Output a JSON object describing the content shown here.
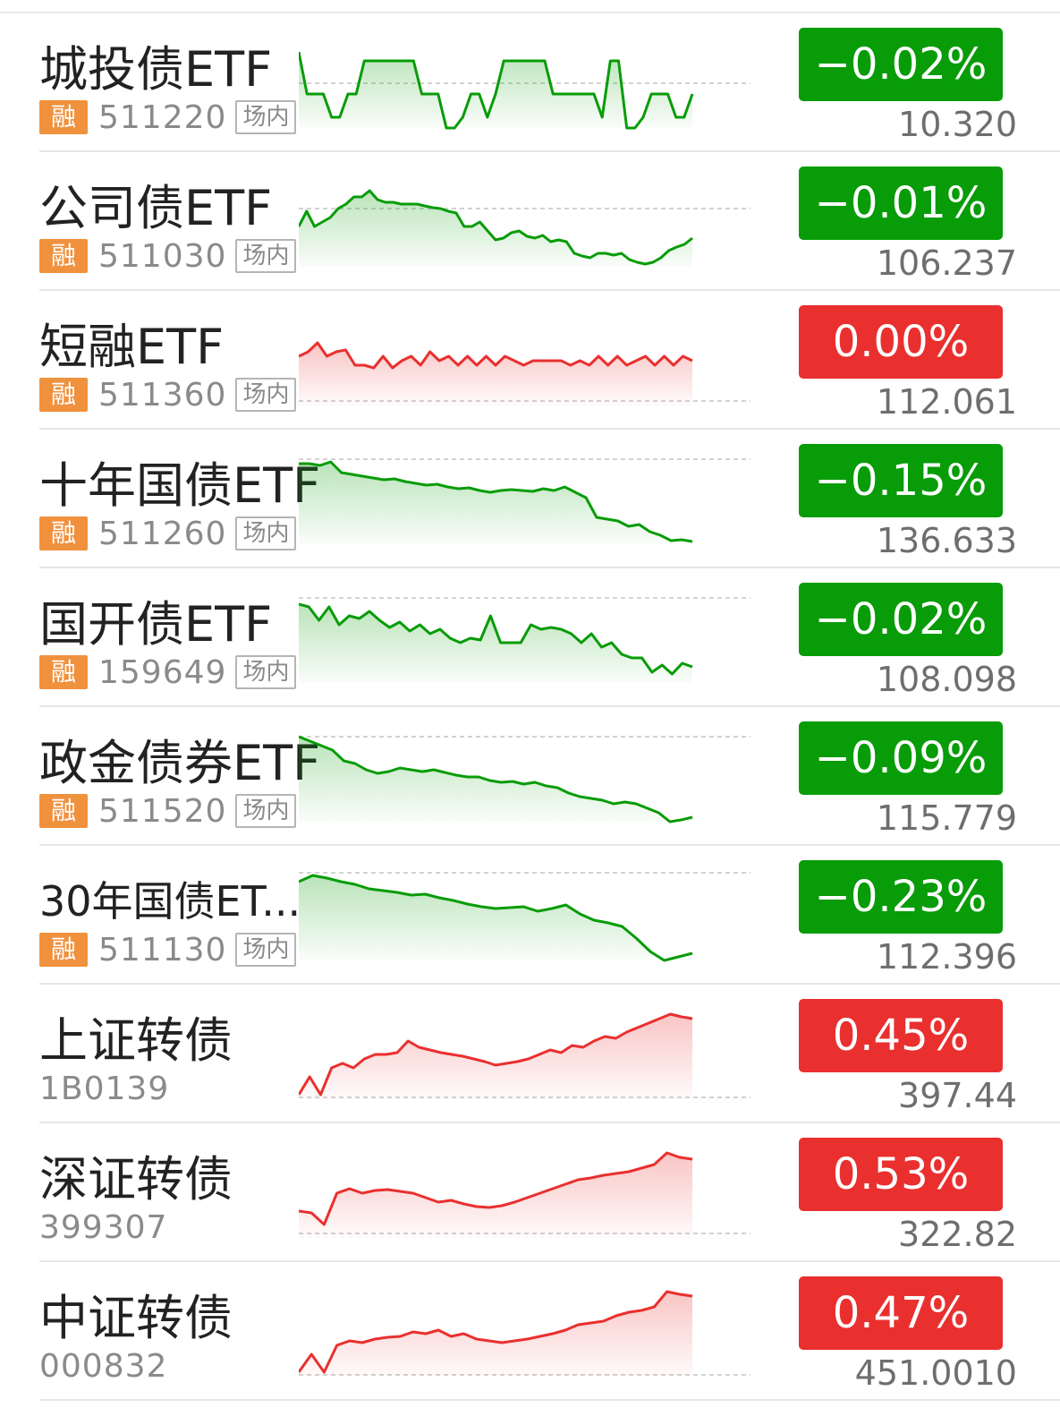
{
  "colors": {
    "down": "#089c08",
    "up": "#e9302f",
    "tag": "#f0913e"
  },
  "items": [
    {
      "name": "城投债ETF",
      "tag": "融",
      "code": "511220",
      "market": "场内",
      "change": "−0.02%",
      "price": "10.320",
      "dir": "down",
      "spark": [
        0.15,
        0.62,
        0.62,
        0.62,
        0.88,
        0.88,
        0.62,
        0.62,
        0.25,
        0.25,
        0.25,
        0.25,
        0.25,
        0.25,
        0.25,
        0.62,
        0.62,
        0.62,
        1.0,
        1.0,
        0.88,
        0.62,
        0.62,
        0.88,
        0.62,
        0.25,
        0.25,
        0.25,
        0.25,
        0.25,
        0.25,
        0.62,
        0.62,
        0.62,
        0.62,
        0.62,
        0.62,
        0.88,
        0.25,
        0.25,
        1.0,
        1.0,
        0.88,
        0.62,
        0.62,
        0.62,
        0.88,
        0.88,
        0.62
      ],
      "ref": 0.5
    },
    {
      "name": "公司债ETF",
      "tag": "融",
      "code": "511030",
      "market": "场内",
      "change": "−0.01%",
      "price": "106.237",
      "dir": "down",
      "spark": [
        0.55,
        0.38,
        0.55,
        0.5,
        0.45,
        0.35,
        0.3,
        0.22,
        0.22,
        0.15,
        0.25,
        0.28,
        0.28,
        0.3,
        0.3,
        0.3,
        0.32,
        0.34,
        0.35,
        0.38,
        0.4,
        0.55,
        0.55,
        0.5,
        0.6,
        0.7,
        0.68,
        0.62,
        0.6,
        0.66,
        0.68,
        0.65,
        0.72,
        0.7,
        0.72,
        0.85,
        0.88,
        0.9,
        0.85,
        0.85,
        0.87,
        0.85,
        0.92,
        0.95,
        0.97,
        0.95,
        0.9,
        0.82,
        0.78,
        0.75,
        0.68
      ],
      "ref": 0.35
    },
    {
      "name": "短融ETF",
      "tag": "融",
      "code": "511360",
      "market": "场内",
      "change": "0.00%",
      "price": "112.061",
      "dir": "up",
      "spark": [
        0.45,
        0.4,
        0.3,
        0.45,
        0.4,
        0.38,
        0.55,
        0.55,
        0.58,
        0.45,
        0.58,
        0.5,
        0.45,
        0.55,
        0.4,
        0.5,
        0.45,
        0.55,
        0.45,
        0.55,
        0.45,
        0.55,
        0.45,
        0.5,
        0.55,
        0.5,
        0.5,
        0.5,
        0.5,
        0.55,
        0.5,
        0.55,
        0.45,
        0.55,
        0.45,
        0.55,
        0.5,
        0.45,
        0.55,
        0.45,
        0.55,
        0.45,
        0.5
      ],
      "ref": 0.95
    },
    {
      "name": "十年国债ETF",
      "tag": "融",
      "code": "511260",
      "market": "场内",
      "change": "−0.15%",
      "price": "136.633",
      "dir": "down",
      "spark": [
        0.1,
        0.1,
        0.12,
        0.08,
        0.2,
        0.22,
        0.24,
        0.26,
        0.28,
        0.27,
        0.3,
        0.32,
        0.34,
        0.33,
        0.36,
        0.38,
        0.37,
        0.4,
        0.42,
        0.4,
        0.39,
        0.4,
        0.41,
        0.38,
        0.4,
        0.36,
        0.42,
        0.48,
        0.7,
        0.72,
        0.74,
        0.8,
        0.78,
        0.86,
        0.9,
        0.96,
        0.95,
        0.97
      ],
      "ref": 0.05
    },
    {
      "name": "国开债ETF",
      "tag": "融",
      "code": "159649",
      "market": "场内",
      "change": "−0.02%",
      "price": "108.098",
      "dir": "down",
      "spark": [
        0.12,
        0.15,
        0.3,
        0.15,
        0.35,
        0.25,
        0.28,
        0.2,
        0.3,
        0.38,
        0.32,
        0.42,
        0.35,
        0.45,
        0.4,
        0.5,
        0.55,
        0.5,
        0.52,
        0.25,
        0.55,
        0.55,
        0.55,
        0.35,
        0.4,
        0.38,
        0.4,
        0.45,
        0.55,
        0.45,
        0.6,
        0.55,
        0.68,
        0.72,
        0.72,
        0.88,
        0.8,
        0.9,
        0.78,
        0.82
      ],
      "ref": 0.05
    },
    {
      "name": "政金债券ETF",
      "tag": "融",
      "code": "511520",
      "market": "场内",
      "change": "−0.09%",
      "price": "115.779",
      "dir": "down",
      "spark": [
        0.05,
        0.1,
        0.15,
        0.2,
        0.32,
        0.35,
        0.42,
        0.46,
        0.44,
        0.4,
        0.42,
        0.44,
        0.42,
        0.45,
        0.48,
        0.5,
        0.5,
        0.54,
        0.56,
        0.55,
        0.58,
        0.56,
        0.6,
        0.62,
        0.68,
        0.72,
        0.74,
        0.76,
        0.8,
        0.78,
        0.8,
        0.85,
        0.9,
        1.0,
        0.98,
        0.95
      ],
      "ref": 0.05
    },
    {
      "name": "30年国债ET...",
      "tag": "融",
      "code": "511130",
      "market": "场内",
      "change": "−0.23%",
      "price": "112.396",
      "dir": "down",
      "spark": [
        0.12,
        0.05,
        0.08,
        0.12,
        0.15,
        0.2,
        0.22,
        0.24,
        0.27,
        0.26,
        0.3,
        0.33,
        0.37,
        0.4,
        0.42,
        0.41,
        0.4,
        0.45,
        0.42,
        0.38,
        0.48,
        0.55,
        0.58,
        0.62,
        0.75,
        0.9,
        1.0,
        0.96,
        0.92
      ],
      "ref": 0.02,
      "small": true
    },
    {
      "name": "上证转债",
      "tag": "",
      "code": "1B0139",
      "market": "",
      "change": "0.45%",
      "price": "397.44",
      "dir": "up",
      "spark": [
        0.95,
        0.75,
        0.95,
        0.65,
        0.6,
        0.65,
        0.55,
        0.5,
        0.5,
        0.48,
        0.35,
        0.42,
        0.45,
        0.48,
        0.5,
        0.52,
        0.55,
        0.58,
        0.62,
        0.6,
        0.58,
        0.55,
        0.5,
        0.45,
        0.48,
        0.4,
        0.42,
        0.35,
        0.3,
        0.32,
        0.25,
        0.2,
        0.15,
        0.1,
        0.05,
        0.08,
        0.1
      ],
      "ref": 0.98
    },
    {
      "name": "深证转债",
      "tag": "",
      "code": "399307",
      "market": "",
      "change": "0.53%",
      "price": "322.82",
      "dir": "up",
      "spark": [
        0.7,
        0.72,
        0.85,
        0.5,
        0.45,
        0.5,
        0.47,
        0.46,
        0.48,
        0.5,
        0.55,
        0.6,
        0.58,
        0.62,
        0.65,
        0.66,
        0.64,
        0.6,
        0.55,
        0.5,
        0.45,
        0.4,
        0.35,
        0.33,
        0.3,
        0.28,
        0.26,
        0.22,
        0.18,
        0.05,
        0.1,
        0.12
      ],
      "ref": 0.95
    },
    {
      "name": "中证转债",
      "tag": "",
      "code": "000832",
      "market": "",
      "change": "0.47%",
      "price": "451.0010",
      "dir": "up",
      "spark": [
        0.95,
        0.75,
        0.95,
        0.65,
        0.6,
        0.62,
        0.58,
        0.56,
        0.55,
        0.5,
        0.52,
        0.48,
        0.55,
        0.52,
        0.58,
        0.6,
        0.62,
        0.6,
        0.58,
        0.55,
        0.52,
        0.48,
        0.42,
        0.4,
        0.38,
        0.32,
        0.28,
        0.26,
        0.22,
        0.05,
        0.08,
        0.1
      ],
      "ref": 0.98
    }
  ]
}
